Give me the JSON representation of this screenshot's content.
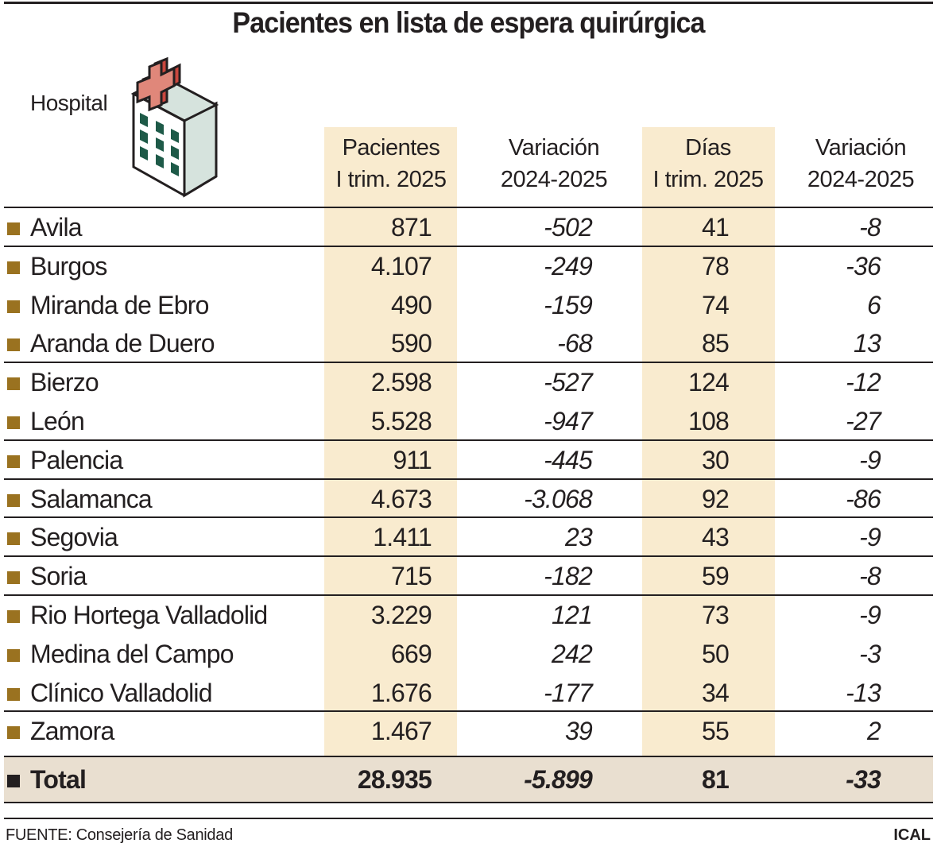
{
  "title": "Pacientes en lista de espera quirúrgica",
  "chart_data": {
    "type": "table",
    "title": "Pacientes en lista de espera quirúrgica",
    "columns": [
      "Hospital",
      "Pacientes I trim. 2025",
      "Variación 2024-2025",
      "Días I trim. 2025",
      "Variación 2024-2025"
    ],
    "column_headers": [
      {
        "line1": "Pacientes",
        "line2": "I trim. 2025"
      },
      {
        "line1": "Variación",
        "line2": "2024-2025"
      },
      {
        "line1": "Días",
        "line2": "I trim. 2025"
      },
      {
        "line1": "Variación",
        "line2": "2024-2025"
      }
    ],
    "rows": [
      {
        "hospital": "Avila",
        "pacientes": "871",
        "var_pacientes": "-502",
        "dias": "41",
        "var_dias": "-8"
      },
      {
        "hospital": "Burgos",
        "pacientes": "4.107",
        "var_pacientes": "-249",
        "dias": "78",
        "var_dias": "-36"
      },
      {
        "hospital": "Miranda de Ebro",
        "pacientes": "490",
        "var_pacientes": "-159",
        "dias": "74",
        "var_dias": "6"
      },
      {
        "hospital": "Aranda de Duero",
        "pacientes": "590",
        "var_pacientes": "-68",
        "dias": "85",
        "var_dias": "13"
      },
      {
        "hospital": "Bierzo",
        "pacientes": "2.598",
        "var_pacientes": "-527",
        "dias": "124",
        "var_dias": "-12"
      },
      {
        "hospital": "León",
        "pacientes": "5.528",
        "var_pacientes": "-947",
        "dias": "108",
        "var_dias": "-27"
      },
      {
        "hospital": "Palencia",
        "pacientes": "911",
        "var_pacientes": "-445",
        "dias": "30",
        "var_dias": "-9"
      },
      {
        "hospital": "Salamanca",
        "pacientes": "4.673",
        "var_pacientes": "-3.068",
        "dias": "92",
        "var_dias": "-86"
      },
      {
        "hospital": "Segovia",
        "pacientes": "1.411",
        "var_pacientes": "23",
        "dias": "43",
        "var_dias": "-9"
      },
      {
        "hospital": "Soria",
        "pacientes": "715",
        "var_pacientes": "-182",
        "dias": "59",
        "var_dias": "-8"
      },
      {
        "hospital": "Rio Hortega Valladolid",
        "pacientes": "3.229",
        "var_pacientes": "121",
        "dias": "73",
        "var_dias": "-9"
      },
      {
        "hospital": "Medina del Campo",
        "pacientes": "669",
        "var_pacientes": "242",
        "dias": "50",
        "var_dias": "-3"
      },
      {
        "hospital": "Clínico Valladolid",
        "pacientes": "1.676",
        "var_pacientes": "-177",
        "dias": "34",
        "var_dias": "-13"
      },
      {
        "hospital": "Zamora",
        "pacientes": "1.467",
        "var_pacientes": "39",
        "dias": "55",
        "var_dias": "2"
      }
    ],
    "total": {
      "hospital": "Total",
      "pacientes": "28.935",
      "var_pacientes": "-5.899",
      "dias": "81",
      "var_dias": "-33"
    }
  },
  "footer": {
    "source": "FUENTE: Consejería de Sanidad",
    "brand": "ICAL"
  },
  "icon": "hospital-building-icon",
  "colors": {
    "highlight_column": "#f9ebcf",
    "total_row": "#e9dfd0",
    "bullet": "#9a7220",
    "text": "#231f20",
    "cross": "#e0877a",
    "windows": "#1e5a48"
  }
}
